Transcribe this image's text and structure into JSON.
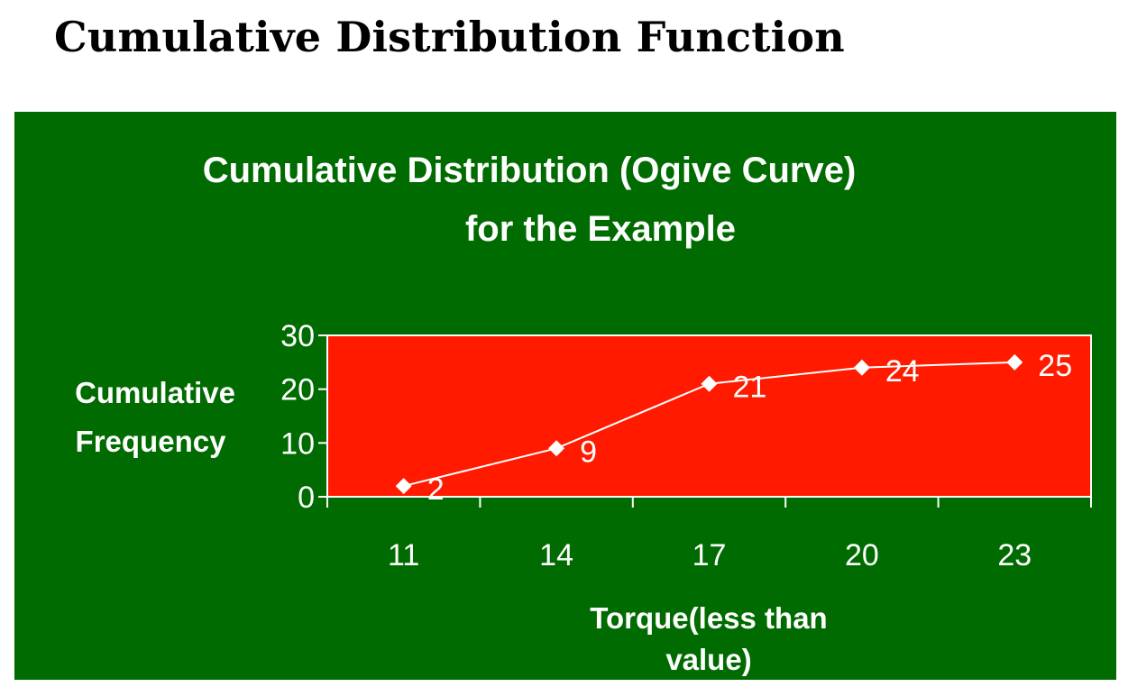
{
  "page": {
    "heading": "Cumulative Distribution Function"
  },
  "colors": {
    "panel_background": "#006b00",
    "plot_background": "#ff1a00",
    "series_line": "#ffffff",
    "text": "#ffffff"
  },
  "chart_data": {
    "type": "line",
    "title_lines": [
      "Cumulative Distribution (Ogive Curve)",
      "for the Example"
    ],
    "ylabel_lines": [
      "Cumulative",
      "Frequency"
    ],
    "xlabel_lines": [
      "Torque(less than",
      "value)"
    ],
    "categories": [
      "11",
      "14",
      "17",
      "20",
      "23"
    ],
    "y_tick_labels": [
      "0",
      "10",
      "20",
      "30"
    ],
    "ylim": [
      0,
      30
    ],
    "grid": false,
    "legend": "none",
    "marker": "diamond",
    "series": [
      {
        "values": [
          2,
          9,
          21,
          24,
          25
        ],
        "data_labels": [
          "2",
          "9",
          "21",
          "24",
          "25"
        ]
      }
    ]
  }
}
